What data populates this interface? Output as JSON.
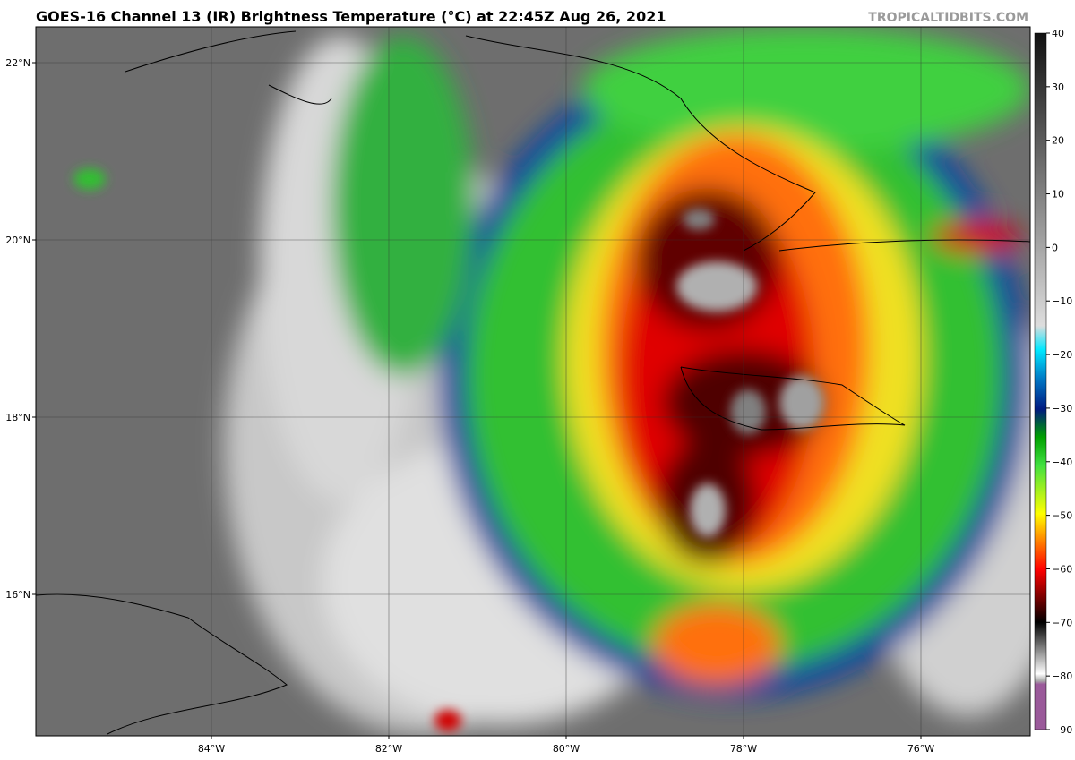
{
  "header": {
    "title": "GOES-16 Channel 13 (IR) Brightness Temperature (°C) at 22:45Z Aug 26, 2021",
    "source": "TROPICALTIDBITS.COM"
  },
  "map": {
    "lat_labels": [
      "22°N",
      "20°N",
      "18°N",
      "16°N"
    ],
    "lon_labels": [
      "84°W",
      "82°W",
      "80°W",
      "78°W",
      "76°W"
    ]
  },
  "colorbar": {
    "ticks": [
      "40",
      "30",
      "20",
      "10",
      "0",
      "−10",
      "−20",
      "−30",
      "−40",
      "−50",
      "−60",
      "−70",
      "−80",
      "−90"
    ]
  }
}
